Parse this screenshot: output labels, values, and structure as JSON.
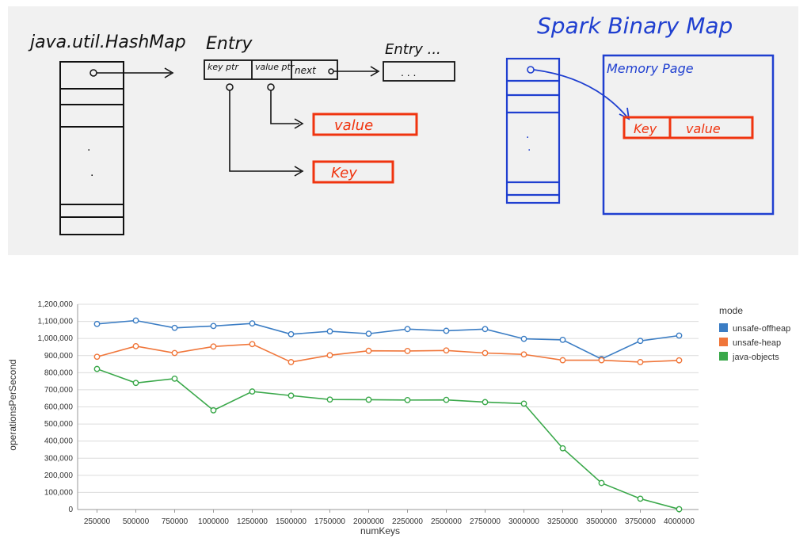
{
  "whiteboard": {
    "left_title": "java.util.HashMap",
    "entry_label": "Entry",
    "entry_more_label": "Entry ...",
    "key_ptr_label": "key ptr",
    "value_ptr_label": "value ptr",
    "next_label": "next",
    "ellipsis": ". . .",
    "value_label": "value",
    "key_label": "Key",
    "right_title": "Spark Binary Map",
    "memory_page_label": "Memory Page",
    "mp_key_label": "Key",
    "mp_value_label": "value",
    "colors": {
      "blue": "#1f3fd0",
      "red": "#f0340f",
      "black": "#111111"
    }
  },
  "chart_data": {
    "type": "line",
    "x": [
      250000,
      500000,
      750000,
      1000000,
      1250000,
      1500000,
      1750000,
      2000000,
      2250000,
      2500000,
      2750000,
      3000000,
      3250000,
      3500000,
      3750000,
      4000000
    ],
    "x_tick_labels": [
      "250000",
      "500000",
      "750000",
      "1000000",
      "1250000",
      "1500000",
      "1750000",
      "2000000",
      "2250000",
      "2500000",
      "2750000",
      "3000000",
      "3250000",
      "3500000",
      "3750000",
      "4000000"
    ],
    "series": [
      {
        "name": "unsafe-offheap",
        "color": "#3b7dc4",
        "values": [
          1085000,
          1105000,
          1062000,
          1073000,
          1088000,
          1025000,
          1042000,
          1028000,
          1055000,
          1045000,
          1055000,
          998000,
          992000,
          880000,
          986000,
          1017000
        ]
      },
      {
        "name": "unsafe-heap",
        "color": "#f0763a",
        "values": [
          893000,
          955000,
          915000,
          953000,
          967000,
          862000,
          902000,
          928000,
          927000,
          930000,
          915000,
          907000,
          873000,
          873000,
          862000,
          872000
        ]
      },
      {
        "name": "java-objects",
        "color": "#3aa84a",
        "values": [
          822000,
          740000,
          765000,
          580000,
          690000,
          666000,
          643000,
          642000,
          640000,
          641000,
          628000,
          619000,
          358000,
          155000,
          63000,
          2000
        ]
      }
    ],
    "xlabel": "numKeys",
    "ylabel": "operationsPerSecond",
    "ylim": [
      0,
      1200000
    ],
    "y_ticks": [
      "0",
      "100,000",
      "200,000",
      "300,000",
      "400,000",
      "500,000",
      "600,000",
      "700,000",
      "800,000",
      "900,000",
      "1,000,000",
      "1,100,000",
      "1,200,000"
    ],
    "legend_title": "mode",
    "legend_position": "right",
    "grid": true
  }
}
